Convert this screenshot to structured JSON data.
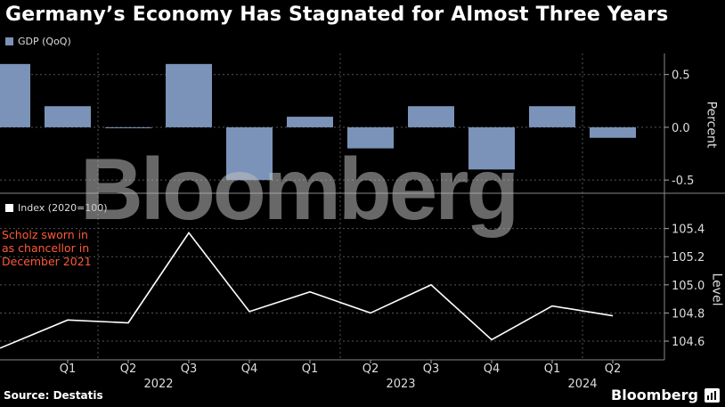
{
  "title": "Germany’s Economy Has Stagnated for Almost Three Years",
  "source": "Source: Destatis",
  "brand": "Bloomberg",
  "watermark": "Bloomberg",
  "annotation": "Scholz sworn in as chancellor in December 2021",
  "colors": {
    "bar": "#7b93b8",
    "line": "#ffffff",
    "annotation": "#ff5a36",
    "background": "#000000"
  },
  "chart_data": [
    {
      "type": "bar",
      "legend": "GDP (QoQ)",
      "ylabel": "Percent",
      "categories": [
        "Q4 2021",
        "Q1 2022",
        "Q2 2022",
        "Q3 2022",
        "Q4 2022",
        "Q1 2023",
        "Q2 2023",
        "Q3 2023",
        "Q4 2023",
        "Q1 2024",
        "Q2 2024"
      ],
      "values": [
        0.6,
        0.2,
        0.0,
        0.6,
        -0.5,
        0.1,
        -0.2,
        0.2,
        -0.4,
        0.2,
        -0.1
      ],
      "ylim": [
        -0.6,
        0.7
      ],
      "yticks": [
        0.5,
        0.0,
        -0.5
      ],
      "ytick_labels": [
        "0.5",
        "0.0",
        "-0.5"
      ]
    },
    {
      "type": "line",
      "legend": "Index (2020=100)",
      "ylabel": "Level",
      "x": [
        "Q4 2021",
        "Q1 2022",
        "Q2 2022",
        "Q3 2022",
        "Q4 2022",
        "Q1 2023",
        "Q2 2023",
        "Q3 2023",
        "Q4 2023",
        "Q1 2024",
        "Q2 2024"
      ],
      "values": [
        104.55,
        104.75,
        104.73,
        105.37,
        104.81,
        104.95,
        104.8,
        105.0,
        104.61,
        104.85,
        104.78
      ],
      "ylim": [
        104.48,
        105.48
      ],
      "yticks": [
        105.4,
        105.2,
        105.0,
        104.8,
        104.6
      ],
      "ytick_labels": [
        "105.4",
        "105.2",
        "105.0",
        "104.8",
        "104.6"
      ],
      "xtick_labels": [
        "Q1",
        "Q2",
        "Q3",
        "Q4",
        "Q1",
        "Q2",
        "Q3",
        "Q4",
        "Q1",
        "Q2"
      ],
      "year_labels": [
        "2022",
        "2023",
        "2024"
      ]
    }
  ]
}
